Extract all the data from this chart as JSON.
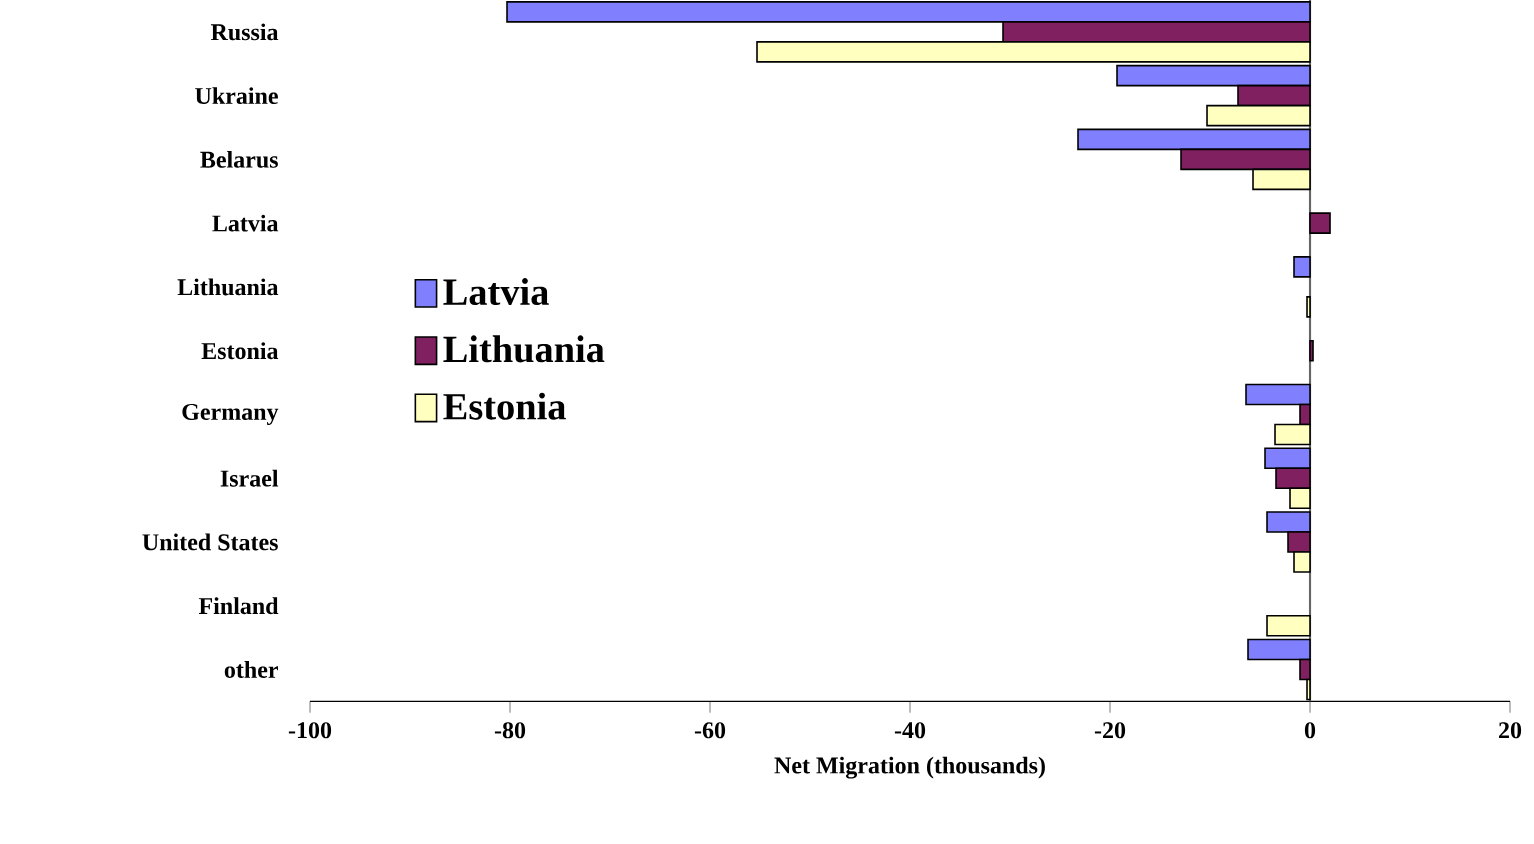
{
  "chart_data": {
    "type": "bar",
    "orientation": "horizontal",
    "xlabel": "Net Migration (thousands)",
    "categories": [
      "Russia",
      "Ukraine",
      "Belarus",
      "Latvia",
      "Lithuania",
      "Estonia",
      "Germany",
      "Israel",
      "United States",
      "Finland",
      "other"
    ],
    "series": [
      {
        "name": "Latvia",
        "color": "#8080ff",
        "values": [
          -80.3,
          -19.3,
          -23.2,
          null,
          -1.6,
          null,
          -6.4,
          -4.5,
          -4.3,
          null,
          -6.2
        ]
      },
      {
        "name": "Lithuania",
        "color": "#802060",
        "values": [
          -30.7,
          -7.2,
          -12.9,
          2.0,
          null,
          0.3,
          -1.0,
          -3.4,
          -2.2,
          null,
          -1.0
        ]
      },
      {
        "name": "Estonia",
        "color": "#ffffc0",
        "values": [
          -55.3,
          -10.3,
          -5.7,
          null,
          -0.3,
          null,
          -3.5,
          -2.0,
          -1.6,
          -4.3,
          -0.3
        ]
      }
    ],
    "xlim": [
      -100,
      20
    ],
    "xticks": [
      -100,
      -80,
      -60,
      -40,
      -20,
      0,
      20
    ],
    "legend": "left"
  }
}
